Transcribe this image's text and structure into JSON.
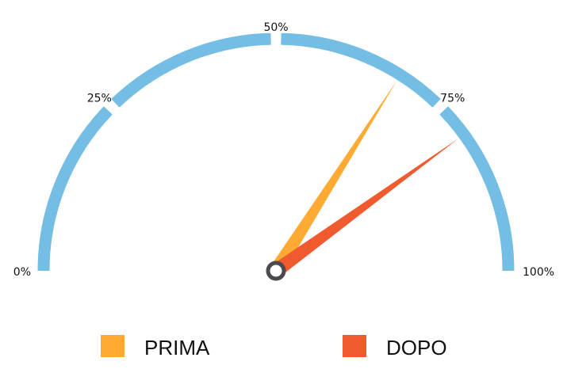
{
  "chart_data": {
    "type": "gauge",
    "range": [
      0,
      100
    ],
    "unit": "%",
    "tick_labels": [
      "0%",
      "25%",
      "50%",
      "75%",
      "100%"
    ],
    "tick_values": [
      0,
      25,
      50,
      75,
      100
    ],
    "series": [
      {
        "name": "PRIMA",
        "value": 68,
        "color": "#FFAA33"
      },
      {
        "name": "DOPO",
        "value": 80,
        "color": "#F15A2E"
      }
    ],
    "arc_color": "#74BDE5",
    "hub_color": "#4A4A4F",
    "legend_position": "bottom"
  }
}
